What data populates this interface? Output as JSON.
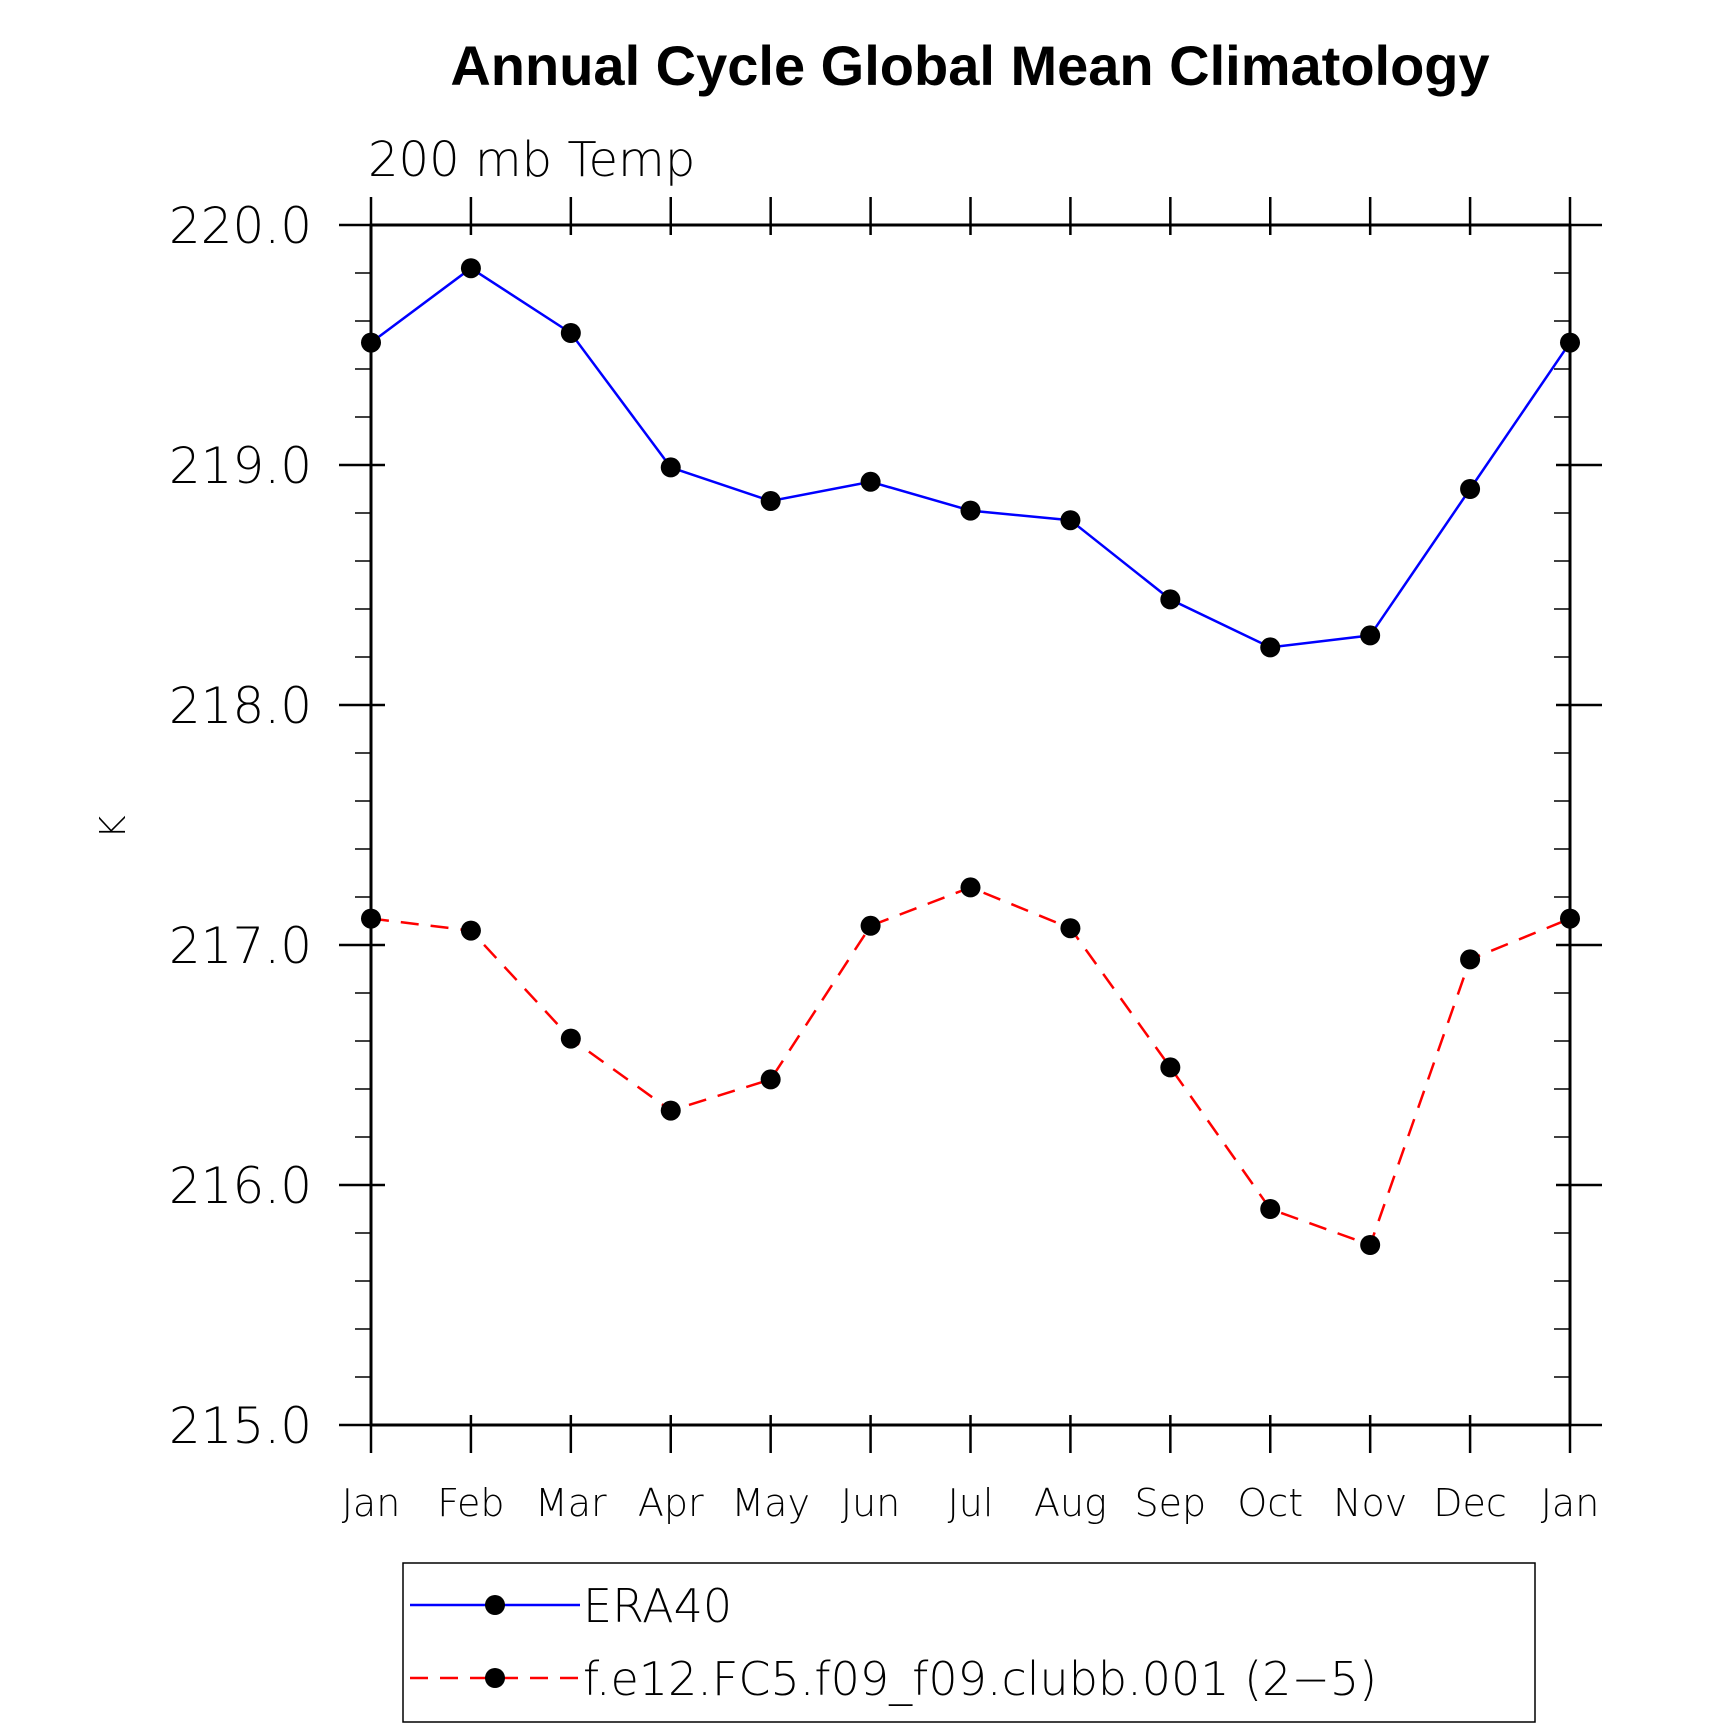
{
  "chart_data": {
    "type": "line",
    "title": "Annual Cycle Global Mean Climatology",
    "subtitle": "200 mb Temp",
    "ylabel": "K",
    "xlabel": "",
    "categories": [
      "Jan",
      "Feb",
      "Mar",
      "Apr",
      "May",
      "Jun",
      "Jul",
      "Aug",
      "Sep",
      "Oct",
      "Nov",
      "Dec",
      "Jan"
    ],
    "ylim": [
      215.0,
      220.0
    ],
    "yticks": [
      "215.0",
      "216.0",
      "217.0",
      "218.0",
      "219.0",
      "220.0"
    ],
    "legend_position": "bottom",
    "grid": false,
    "series": [
      {
        "name": "ERA40",
        "color": "#0000ff",
        "dash": "solid",
        "marker": "filled-circle",
        "values": [
          219.51,
          219.82,
          219.55,
          218.99,
          218.85,
          218.93,
          218.81,
          218.77,
          218.44,
          218.24,
          218.29,
          218.9,
          219.51
        ]
      },
      {
        "name": "f.e12.FC5.f09_f09.clubb.001 (2−5)",
        "color": "#ff0000",
        "dash": "dashed",
        "marker": "filled-circle",
        "values": [
          217.11,
          217.06,
          216.61,
          216.31,
          216.44,
          217.08,
          217.24,
          217.07,
          216.49,
          215.9,
          215.75,
          216.94,
          217.11
        ]
      }
    ]
  }
}
